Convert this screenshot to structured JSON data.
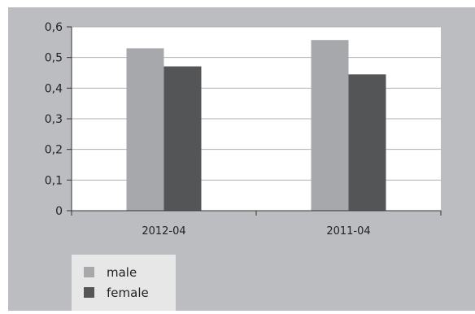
{
  "chart_data": {
    "type": "bar",
    "categories": [
      "2012-04",
      "2011-04"
    ],
    "series": [
      {
        "name": "male",
        "values": [
          0.53,
          0.557
        ]
      },
      {
        "name": "female",
        "values": [
          0.471,
          0.445
        ]
      }
    ],
    "ylim": [
      0,
      0.6
    ],
    "yticks": [
      "0",
      "0,1",
      "0,2",
      "0,3",
      "0,4",
      "0,5",
      "0,6"
    ],
    "grid": true,
    "legend_position": "bottom-left"
  },
  "colors": {
    "background": "#bcbdc0",
    "plot_area": "#ffffff",
    "male": "#a7a8ab",
    "female": "#545557",
    "legend_box": "#e7e7e8",
    "axis": "#333333",
    "grid": "#b0b0b0"
  }
}
